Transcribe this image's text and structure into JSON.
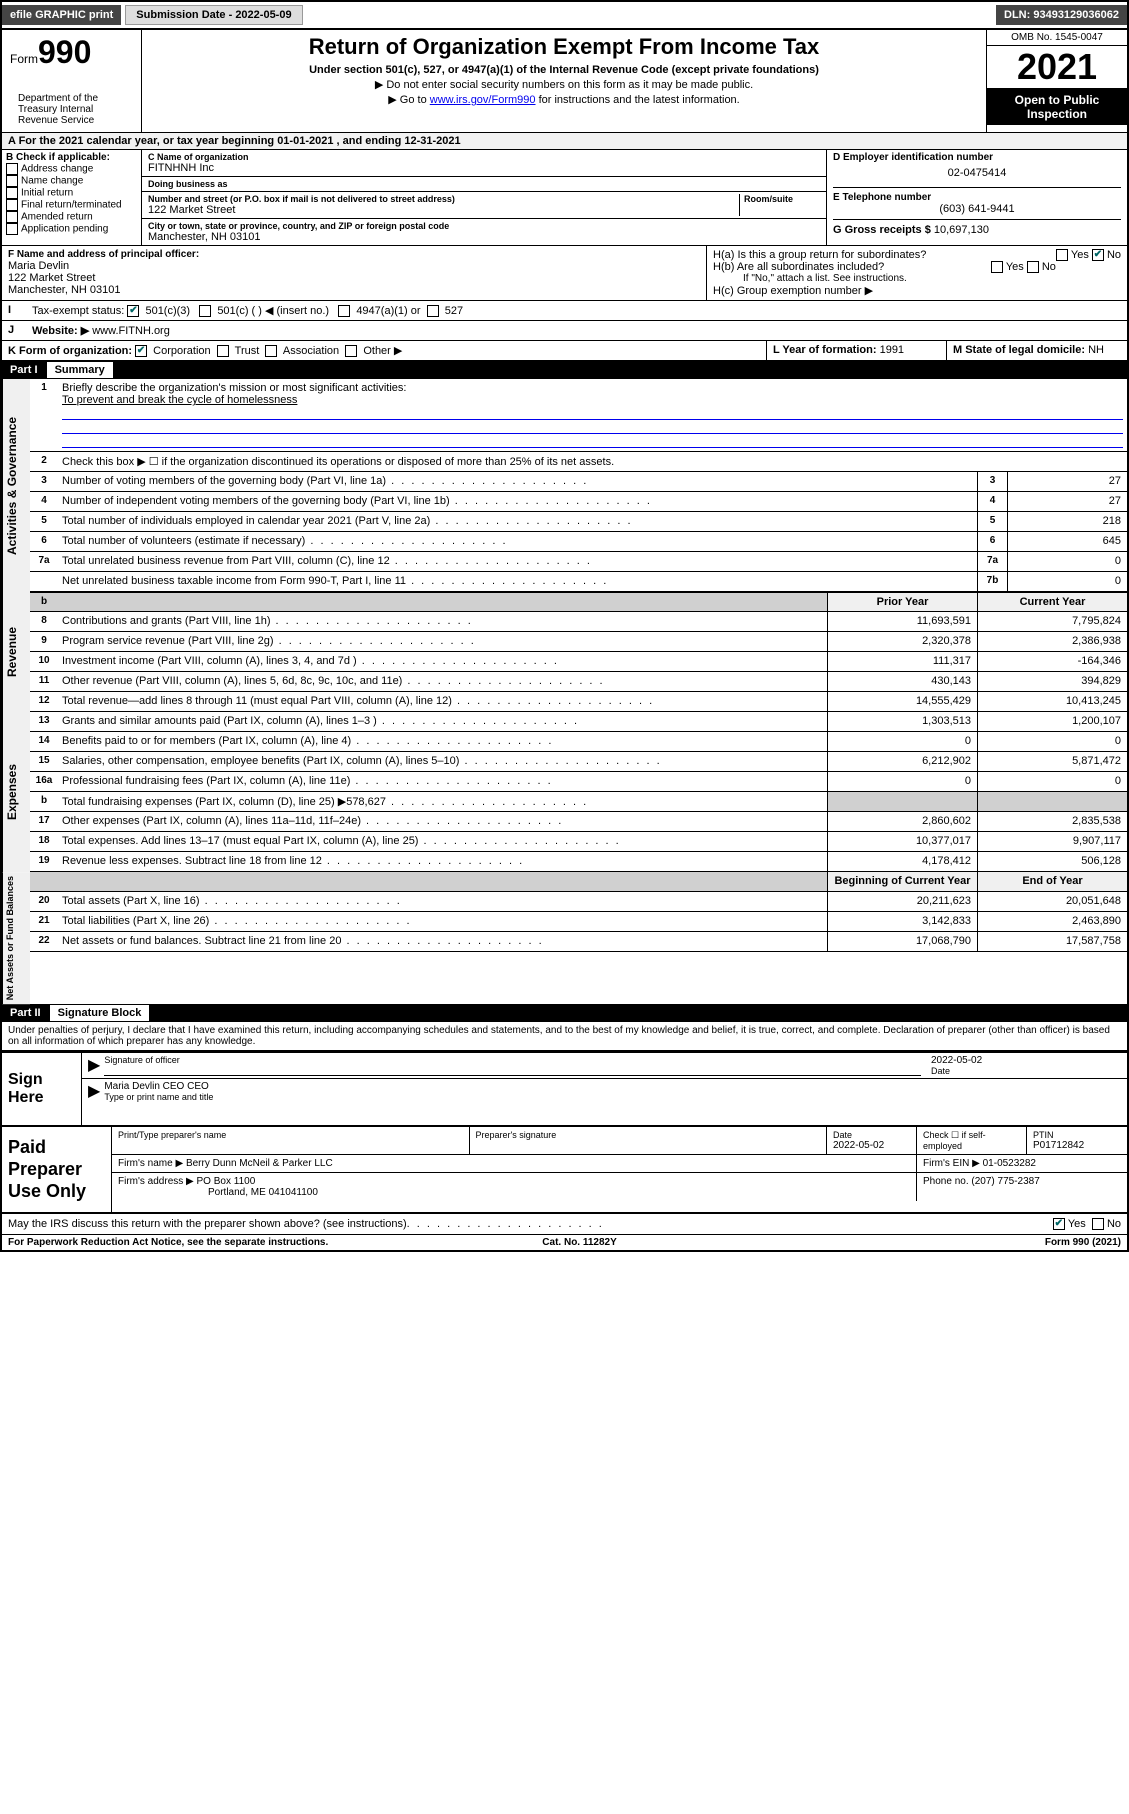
{
  "top": {
    "efile": "efile GRAPHIC print",
    "sub_label": "Submission Date - 2022-05-09",
    "dln": "DLN: 93493129036062"
  },
  "header": {
    "form_prefix": "Form",
    "form_num": "990",
    "title": "Return of Organization Exempt From Income Tax",
    "subtitle": "Under section 501(c), 527, or 4947(a)(1) of the Internal Revenue Code (except private foundations)",
    "note1": "▶ Do not enter social security numbers on this form as it may be made public.",
    "note2_pre": "▶ Go to ",
    "note2_link": "www.irs.gov/Form990",
    "note2_post": " for instructions and the latest information.",
    "omb": "OMB No. 1545-0047",
    "year": "2021",
    "inspect": "Open to Public Inspection",
    "dept": "Department of the Treasury Internal Revenue Service"
  },
  "A": {
    "text": "A For the 2021 calendar year, or tax year beginning 01-01-2021   , and ending 12-31-2021"
  },
  "B": {
    "label": "B Check if applicable:",
    "opts": [
      "Address change",
      "Name change",
      "Initial return",
      "Final return/terminated",
      "Amended return",
      "Application pending"
    ]
  },
  "C": {
    "name_lbl": "C Name of organization",
    "name": "FITNHNH Inc",
    "dba_lbl": "Doing business as",
    "dba": "",
    "addr_lbl": "Number and street (or P.O. box if mail is not delivered to street address)",
    "room_lbl": "Room/suite",
    "addr": "122 Market Street",
    "city_lbl": "City or town, state or province, country, and ZIP or foreign postal code",
    "city": "Manchester, NH  03101"
  },
  "D": {
    "ein_lbl": "D Employer identification number",
    "ein": "02-0475414",
    "tel_lbl": "E Telephone number",
    "tel": "(603) 641-9441",
    "gross_lbl": "G Gross receipts $",
    "gross": "10,697,130"
  },
  "F": {
    "lbl": "F Name and address of principal officer:",
    "name": "Maria Devlin",
    "addr1": "122 Market Street",
    "addr2": "Manchester, NH  03101"
  },
  "H": {
    "a": "H(a)  Is this a group return for subordinates?",
    "b": "H(b)  Are all subordinates included?",
    "b_note": "If \"No,\" attach a list. See instructions.",
    "c": "H(c)  Group exemption number ▶"
  },
  "I": {
    "lbl": "Tax-exempt status:",
    "opts": [
      "501(c)(3)",
      "501(c) (  ) ◀ (insert no.)",
      "4947(a)(1) or",
      "527"
    ]
  },
  "J": {
    "lbl": "Website: ▶",
    "val": "www.FITNH.org"
  },
  "K": {
    "lbl": "K Form of organization:",
    "opts": [
      "Corporation",
      "Trust",
      "Association",
      "Other ▶"
    ]
  },
  "L": {
    "lbl": "L Year of formation:",
    "val": "1991"
  },
  "M": {
    "lbl": "M State of legal domicile:",
    "val": "NH"
  },
  "part1": {
    "hdr_num": "Part I",
    "hdr_title": "Summary",
    "l1": "Briefly describe the organization's mission or most significant activities:",
    "mission": "To prevent and break the cycle of homelessness",
    "l2": "Check this box ▶ ☐  if the organization discontinued its operations or disposed of more than 25% of its net assets.",
    "rows_gov": [
      {
        "n": "3",
        "t": "Number of voting members of the governing body (Part VI, line 1a)",
        "b": "3",
        "v": "27"
      },
      {
        "n": "4",
        "t": "Number of independent voting members of the governing body (Part VI, line 1b)",
        "b": "4",
        "v": "27"
      },
      {
        "n": "5",
        "t": "Total number of individuals employed in calendar year 2021 (Part V, line 2a)",
        "b": "5",
        "v": "218"
      },
      {
        "n": "6",
        "t": "Total number of volunteers (estimate if necessary)",
        "b": "6",
        "v": "645"
      },
      {
        "n": "7a",
        "t": "Total unrelated business revenue from Part VIII, column (C), line 12",
        "b": "7a",
        "v": "0"
      },
      {
        "n": "",
        "t": "Net unrelated business taxable income from Form 990-T, Part I, line 11",
        "b": "7b",
        "v": "0"
      }
    ],
    "col_prior": "Prior Year",
    "col_curr": "Current Year",
    "rows_rev": [
      {
        "n": "8",
        "t": "Contributions and grants (Part VIII, line 1h)",
        "p": "11,693,591",
        "c": "7,795,824"
      },
      {
        "n": "9",
        "t": "Program service revenue (Part VIII, line 2g)",
        "p": "2,320,378",
        "c": "2,386,938"
      },
      {
        "n": "10",
        "t": "Investment income (Part VIII, column (A), lines 3, 4, and 7d )",
        "p": "111,317",
        "c": "-164,346"
      },
      {
        "n": "11",
        "t": "Other revenue (Part VIII, column (A), lines 5, 6d, 8c, 9c, 10c, and 11e)",
        "p": "430,143",
        "c": "394,829"
      },
      {
        "n": "12",
        "t": "Total revenue—add lines 8 through 11 (must equal Part VIII, column (A), line 12)",
        "p": "14,555,429",
        "c": "10,413,245"
      }
    ],
    "rows_exp": [
      {
        "n": "13",
        "t": "Grants and similar amounts paid (Part IX, column (A), lines 1–3 )",
        "p": "1,303,513",
        "c": "1,200,107"
      },
      {
        "n": "14",
        "t": "Benefits paid to or for members (Part IX, column (A), line 4)",
        "p": "0",
        "c": "0"
      },
      {
        "n": "15",
        "t": "Salaries, other compensation, employee benefits (Part IX, column (A), lines 5–10)",
        "p": "6,212,902",
        "c": "5,871,472"
      },
      {
        "n": "16a",
        "t": "Professional fundraising fees (Part IX, column (A), line 11e)",
        "p": "0",
        "c": "0"
      },
      {
        "n": "b",
        "t": "Total fundraising expenses (Part IX, column (D), line 25) ▶578,627",
        "p": "",
        "c": "",
        "shade": true
      },
      {
        "n": "17",
        "t": "Other expenses (Part IX, column (A), lines 11a–11d, 11f–24e)",
        "p": "2,860,602",
        "c": "2,835,538"
      },
      {
        "n": "18",
        "t": "Total expenses. Add lines 13–17 (must equal Part IX, column (A), line 25)",
        "p": "10,377,017",
        "c": "9,907,117"
      },
      {
        "n": "19",
        "t": "Revenue less expenses. Subtract line 18 from line 12",
        "p": "4,178,412",
        "c": "506,128"
      }
    ],
    "col_begin": "Beginning of Current Year",
    "col_end": "End of Year",
    "rows_net": [
      {
        "n": "20",
        "t": "Total assets (Part X, line 16)",
        "p": "20,211,623",
        "c": "20,051,648"
      },
      {
        "n": "21",
        "t": "Total liabilities (Part X, line 26)",
        "p": "3,142,833",
        "c": "2,463,890"
      },
      {
        "n": "22",
        "t": "Net assets or fund balances. Subtract line 21 from line 20",
        "p": "17,068,790",
        "c": "17,587,758"
      }
    ]
  },
  "sidetabs": {
    "gov": "Activities & Governance",
    "rev": "Revenue",
    "exp": "Expenses",
    "net": "Net Assets or Fund Balances"
  },
  "part2": {
    "hdr_num": "Part II",
    "hdr_title": "Signature Block",
    "decl": "Under penalties of perjury, I declare that I have examined this return, including accompanying schedules and statements, and to the best of my knowledge and belief, it is true, correct, and complete. Declaration of preparer (other than officer) is based on all information of which preparer has any knowledge."
  },
  "sign": {
    "lbl": "Sign Here",
    "sig_lbl": "Signature of officer",
    "date_lbl": "Date",
    "date": "2022-05-02",
    "name": "Maria Devlin CEO CEO",
    "name_lbl": "Type or print name and title"
  },
  "paid": {
    "lbl": "Paid Preparer Use Only",
    "h1": "Print/Type preparer's name",
    "h2": "Preparer's signature",
    "h3": "Date",
    "date": "2022-05-02",
    "h4": "Check ☐ if self-employed",
    "h5": "PTIN",
    "ptin": "P01712842",
    "firm_lbl": "Firm's name   ▶",
    "firm": "Berry Dunn McNeil & Parker LLC",
    "ein_lbl": "Firm's EIN ▶",
    "ein": "01-0523282",
    "addr_lbl": "Firm's address ▶",
    "addr1": "PO Box 1100",
    "addr2": "Portland, ME  041041100",
    "phone_lbl": "Phone no.",
    "phone": "(207) 775-2387"
  },
  "foot": {
    "q": "May the IRS discuss this return with the preparer shown above? (see instructions)",
    "yes": "Yes",
    "no": "No",
    "pra": "For Paperwork Reduction Act Notice, see the separate instructions.",
    "cat": "Cat. No. 11282Y",
    "form": "Form 990 (2021)"
  },
  "colors": {
    "link": "#0000ee",
    "check": "#006633"
  }
}
